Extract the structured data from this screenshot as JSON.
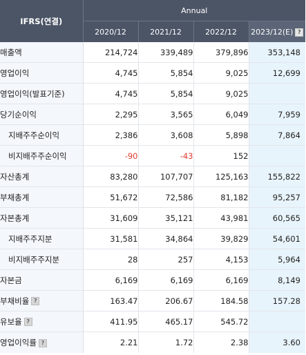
{
  "header": {
    "corner": "IFRS(연결)",
    "group": "Annual",
    "years": [
      "2020/12",
      "2021/12",
      "2022/12",
      "2023/12(E)"
    ],
    "estimate_help_icon": "question-icon"
  },
  "rows": [
    {
      "label": "매출액",
      "indent": false,
      "help": false,
      "values": [
        "214,724",
        "339,489",
        "379,896",
        "353,148"
      ]
    },
    {
      "label": "영업이익",
      "indent": false,
      "help": false,
      "values": [
        "4,745",
        "5,854",
        "9,025",
        "12,699"
      ]
    },
    {
      "label": "영업이익(발표기준)",
      "indent": false,
      "help": false,
      "values": [
        "4,745",
        "5,854",
        "9,025",
        ""
      ]
    },
    {
      "label": "당기순이익",
      "indent": false,
      "help": false,
      "values": [
        "2,295",
        "3,565",
        "6,049",
        "7,959"
      ]
    },
    {
      "label": "지배주주순이익",
      "indent": true,
      "help": false,
      "values": [
        "2,386",
        "3,608",
        "5,898",
        "7,864"
      ]
    },
    {
      "label": "비지배주주순이익",
      "indent": true,
      "help": false,
      "values": [
        "-90",
        "-43",
        "152",
        ""
      ]
    },
    {
      "label": "자산총계",
      "indent": false,
      "help": false,
      "values": [
        "83,280",
        "107,707",
        "125,163",
        "155,822"
      ]
    },
    {
      "label": "부채총계",
      "indent": false,
      "help": false,
      "values": [
        "51,672",
        "72,586",
        "81,182",
        "95,257"
      ]
    },
    {
      "label": "자본총계",
      "indent": false,
      "help": false,
      "values": [
        "31,609",
        "35,121",
        "43,981",
        "60,565"
      ]
    },
    {
      "label": "지배주주지분",
      "indent": true,
      "help": false,
      "values": [
        "31,581",
        "34,864",
        "39,829",
        "54,601"
      ]
    },
    {
      "label": "비지배주주지분",
      "indent": true,
      "help": false,
      "values": [
        "28",
        "257",
        "4,153",
        "5,964"
      ]
    },
    {
      "label": "자본금",
      "indent": false,
      "help": false,
      "values": [
        "6,169",
        "6,169",
        "6,169",
        "8,149"
      ]
    },
    {
      "label": "부채비율",
      "indent": false,
      "help": true,
      "values": [
        "163.47",
        "206.67",
        "184.58",
        "157.28"
      ]
    },
    {
      "label": "유보율",
      "indent": false,
      "help": true,
      "values": [
        "411.95",
        "465.17",
        "545.72",
        ""
      ]
    },
    {
      "label": "영업이익률",
      "indent": false,
      "help": true,
      "values": [
        "2.21",
        "1.72",
        "2.38",
        "3.60"
      ]
    }
  ],
  "colors": {
    "header_bg": "#4c5566",
    "label_bg": "#f4f7fb",
    "estimate_bg": "#e8f4fb",
    "negative": "#e23a2f"
  }
}
